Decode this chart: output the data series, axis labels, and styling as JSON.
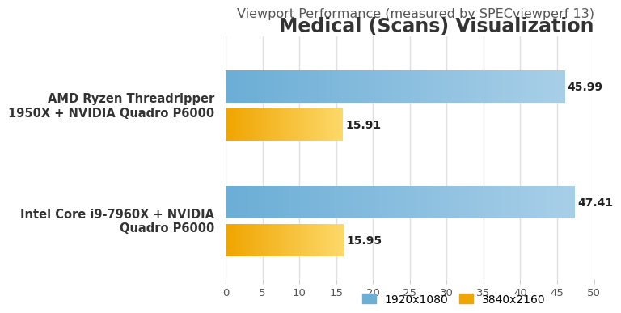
{
  "title": "Medical (Scans) Visualization",
  "subtitle": "Viewport Performance (measured by SPECviewperf 13)",
  "categories": [
    "Intel Core i9-7960X + NVIDIA\nQuadro P6000",
    "AMD Ryzen Threadripper\n1950X + NVIDIA Quadro P6000"
  ],
  "series": [
    {
      "label": "1920x1080",
      "color_left": "#6baed6",
      "color_right": "#a8cfe8",
      "values": [
        47.41,
        45.99
      ]
    },
    {
      "label": "3840x2160",
      "color_left": "#f0a500",
      "color_right": "#fdd96a",
      "values": [
        15.95,
        15.91
      ]
    }
  ],
  "xlim": [
    0,
    50
  ],
  "xticks": [
    0,
    5,
    10,
    15,
    20,
    25,
    30,
    35,
    40,
    45,
    50
  ],
  "background_color": "#ffffff",
  "grid_color": "#e0e0e0",
  "title_fontsize": 17,
  "subtitle_fontsize": 11.5,
  "label_fontsize": 10.5,
  "tick_fontsize": 9.5,
  "value_fontsize": 10,
  "legend_fontsize": 10
}
